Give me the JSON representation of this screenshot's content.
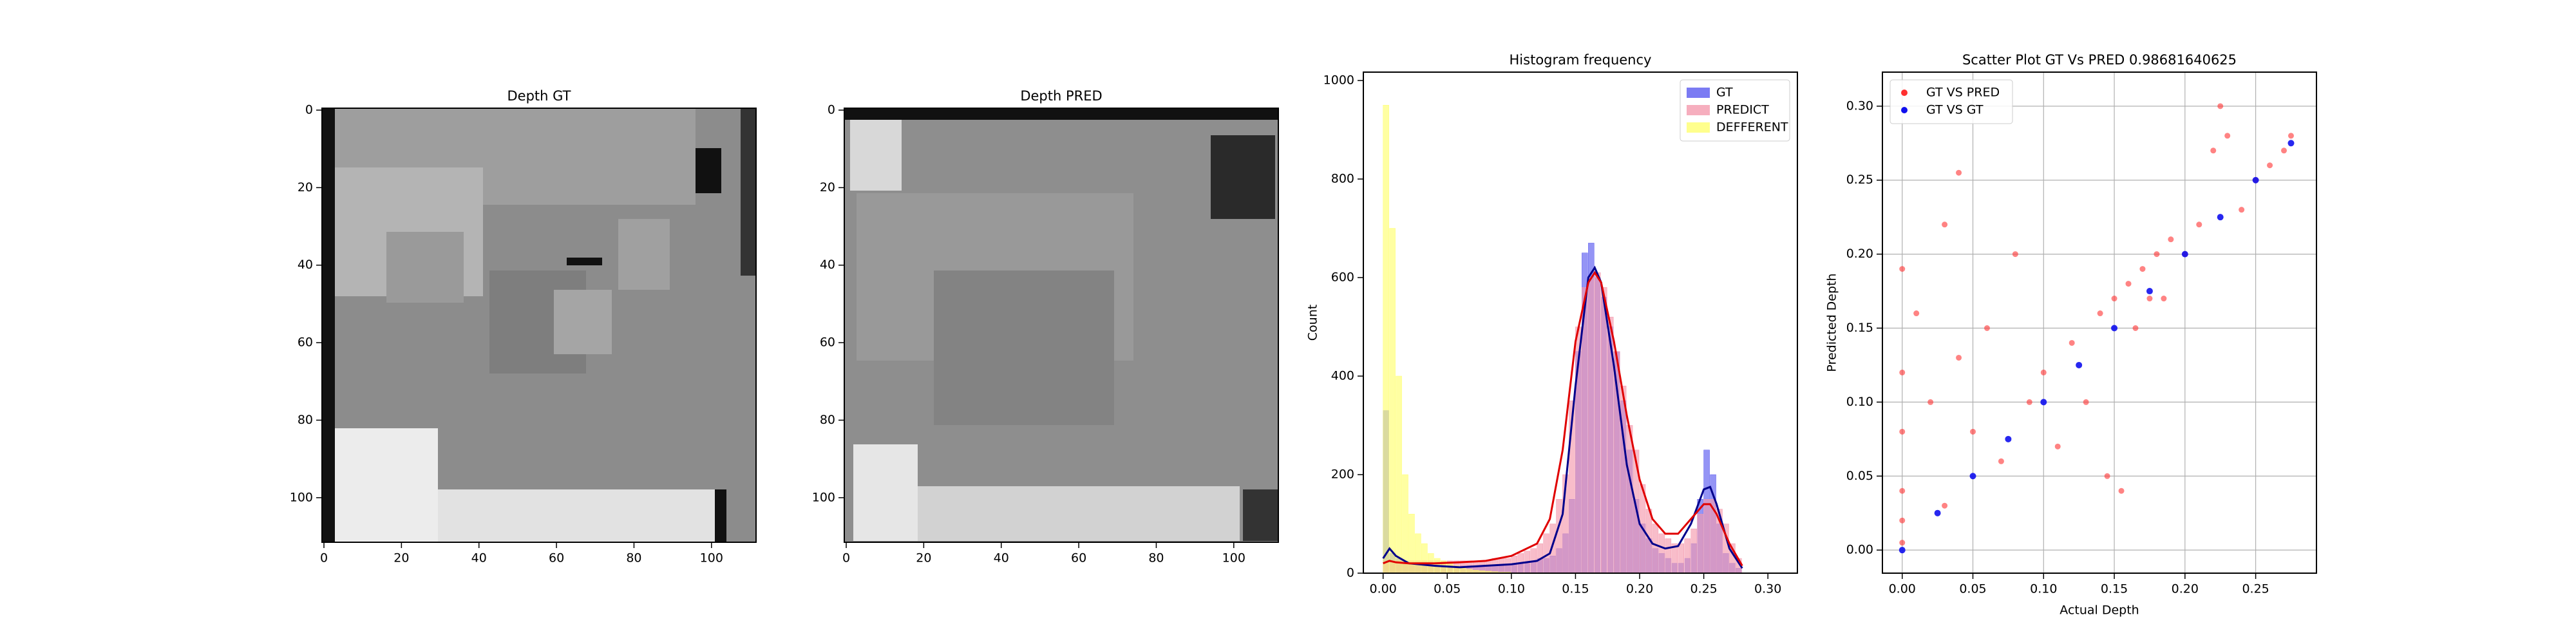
{
  "chart_data": [
    {
      "type": "image",
      "title": "Depth GT",
      "xlim": [
        -0.5,
        111.5
      ],
      "ylim": [
        111.5,
        -0.5
      ],
      "xticks": [
        0,
        20,
        40,
        60,
        80,
        100
      ],
      "yticks": [
        0,
        20,
        40,
        60,
        80,
        100
      ]
    },
    {
      "type": "image",
      "title": "Depth PRED",
      "xlim": [
        -0.5,
        111.5
      ],
      "ylim": [
        111.5,
        -0.5
      ],
      "xticks": [
        0,
        20,
        40,
        60,
        80,
        100
      ],
      "yticks": [
        0,
        20,
        40,
        60,
        80,
        100
      ]
    },
    {
      "type": "histogram",
      "title": "Histogram frequency",
      "ylabel": "Count",
      "legend": "upper right",
      "xlim": [
        -0.0154,
        0.323
      ],
      "ylim": [
        0,
        1017
      ],
      "xticks": [
        {
          "value": 0,
          "label": "0.00"
        },
        {
          "value": 0.05,
          "label": "0.05"
        },
        {
          "value": 0.1,
          "label": "0.10"
        },
        {
          "value": 0.15,
          "label": "0.15"
        },
        {
          "value": 0.2,
          "label": "0.20"
        },
        {
          "value": 0.25,
          "label": "0.25"
        },
        {
          "value": 0.3,
          "label": "0.30"
        }
      ],
      "yticks": [
        0,
        200,
        400,
        600,
        800,
        1000
      ],
      "bins": [
        0,
        0.005,
        0.01,
        0.015,
        0.02,
        0.025,
        0.03,
        0.035,
        0.04,
        0.045,
        0.05,
        0.055,
        0.06,
        0.065,
        0.07,
        0.075,
        0.08,
        0.085,
        0.09,
        0.095,
        0.1,
        0.105,
        0.11,
        0.115,
        0.12,
        0.125,
        0.13,
        0.135,
        0.14,
        0.145,
        0.15,
        0.155,
        0.16,
        0.165,
        0.17,
        0.175,
        0.18,
        0.185,
        0.19,
        0.195,
        0.2,
        0.205,
        0.21,
        0.215,
        0.22,
        0.225,
        0.23,
        0.235,
        0.24,
        0.245,
        0.25,
        0.255,
        0.26,
        0.265,
        0.27,
        0.275,
        0.28
      ],
      "series": [
        {
          "name": "GT",
          "color": "#5a5af0",
          "values": [
            330,
            40,
            30,
            25,
            20,
            18,
            15,
            15,
            15,
            15,
            15,
            15,
            15,
            15,
            15,
            15,
            15,
            15,
            15,
            15,
            18,
            20,
            20,
            25,
            30,
            30,
            35,
            50,
            80,
            150,
            450,
            650,
            670,
            600,
            560,
            500,
            450,
            350,
            250,
            150,
            100,
            70,
            50,
            40,
            30,
            20,
            20,
            30,
            60,
            150,
            250,
            200,
            100,
            40,
            20,
            10
          ]
        },
        {
          "name": "PREDICT",
          "color": "#f49aae",
          "values": [
            20,
            25,
            25,
            25,
            25,
            25,
            25,
            25,
            25,
            25,
            25,
            25,
            25,
            25,
            25,
            25,
            25,
            30,
            30,
            30,
            35,
            40,
            45,
            50,
            60,
            80,
            100,
            150,
            200,
            350,
            500,
            580,
            600,
            610,
            580,
            520,
            450,
            380,
            300,
            250,
            180,
            130,
            100,
            80,
            70,
            60,
            60,
            70,
            90,
            120,
            150,
            150,
            130,
            100,
            60,
            30
          ]
        },
        {
          "name": "DEFFERENT",
          "color": "#ffff70",
          "values": [
            950,
            700,
            400,
            200,
            120,
            80,
            60,
            40,
            30,
            25,
            20,
            15,
            10,
            8,
            6,
            5,
            4,
            3,
            2,
            2,
            0,
            0,
            0,
            0,
            0,
            0,
            0,
            0,
            0,
            0,
            0,
            0,
            0,
            0,
            0,
            0,
            0,
            0,
            0,
            0,
            0,
            0,
            0,
            0,
            0,
            0,
            0,
            0,
            0,
            0,
            0,
            0,
            0,
            0,
            0,
            0
          ]
        }
      ],
      "lines": [
        {
          "color": "#00008b",
          "x": [
            0,
            0.005,
            0.01,
            0.02,
            0.04,
            0.06,
            0.08,
            0.1,
            0.12,
            0.13,
            0.14,
            0.15,
            0.16,
            0.165,
            0.17,
            0.18,
            0.19,
            0.2,
            0.21,
            0.22,
            0.23,
            0.24,
            0.25,
            0.255,
            0.26,
            0.27,
            0.28
          ],
          "values": [
            30,
            50,
            35,
            20,
            15,
            12,
            15,
            18,
            25,
            40,
            120,
            380,
            600,
            620,
            590,
            420,
            220,
            100,
            60,
            50,
            55,
            100,
            170,
            175,
            140,
            50,
            10
          ]
        },
        {
          "color": "#e00000",
          "x": [
            0,
            0.005,
            0.01,
            0.02,
            0.04,
            0.06,
            0.08,
            0.1,
            0.12,
            0.13,
            0.14,
            0.15,
            0.16,
            0.165,
            0.17,
            0.18,
            0.19,
            0.2,
            0.21,
            0.22,
            0.23,
            0.24,
            0.25,
            0.255,
            0.26,
            0.27,
            0.28
          ],
          "values": [
            20,
            25,
            22,
            20,
            20,
            22,
            25,
            35,
            60,
            110,
            250,
            470,
            590,
            610,
            590,
            470,
            320,
            190,
            110,
            80,
            80,
            110,
            140,
            140,
            120,
            60,
            15
          ]
        }
      ]
    },
    {
      "type": "scatter",
      "title": "Scatter Plot GT Vs PRED 0.98681640625",
      "xlabel": "Actual Depth",
      "ylabel": "Predicted Depth",
      "grid": true,
      "legend": "upper left",
      "xlim": [
        -0.014,
        0.293
      ],
      "ylim": [
        -0.0156,
        0.323
      ],
      "xticks": [
        {
          "value": 0,
          "label": "0.00"
        },
        {
          "value": 0.05,
          "label": "0.05"
        },
        {
          "value": 0.1,
          "label": "0.10"
        },
        {
          "value": 0.15,
          "label": "0.15"
        },
        {
          "value": 0.2,
          "label": "0.20"
        },
        {
          "value": 0.25,
          "label": "0.25"
        }
      ],
      "yticks": [
        {
          "value": 0,
          "label": "0.00"
        },
        {
          "value": 0.05,
          "label": "0.05"
        },
        {
          "value": 0.1,
          "label": "0.10"
        },
        {
          "value": 0.15,
          "label": "0.15"
        },
        {
          "value": 0.2,
          "label": "0.20"
        },
        {
          "value": 0.25,
          "label": "0.25"
        },
        {
          "value": 0.3,
          "label": "0.30"
        }
      ],
      "series": [
        {
          "name": "GT VS PRED",
          "color": "#ff3030",
          "x": [
            0,
            0,
            0,
            0,
            0,
            0,
            0.01,
            0.02,
            0.03,
            0.04,
            0.05,
            0.06,
            0.07,
            0.08,
            0.09,
            0.1,
            0.11,
            0.12,
            0.13,
            0.14,
            0.145,
            0.15,
            0.155,
            0.16,
            0.165,
            0.17,
            0.175,
            0.18,
            0.185,
            0.19,
            0.2,
            0.21,
            0.22,
            0.225,
            0.23,
            0.24,
            0.25,
            0.26,
            0.27,
            0.275,
            0.04,
            0.03
          ],
          "values": [
            0.005,
            0.02,
            0.04,
            0.08,
            0.12,
            0.19,
            0.16,
            0.1,
            0.22,
            0.13,
            0.08,
            0.15,
            0.06,
            0.2,
            0.1,
            0.12,
            0.07,
            0.14,
            0.1,
            0.16,
            0.05,
            0.17,
            0.04,
            0.18,
            0.15,
            0.19,
            0.17,
            0.2,
            0.17,
            0.21,
            0.2,
            0.22,
            0.27,
            0.3,
            0.28,
            0.23,
            0.25,
            0.26,
            0.27,
            0.28,
            0.255,
            0.03
          ]
        },
        {
          "name": "GT VS GT",
          "color": "#1010ee",
          "x": [
            0,
            0.025,
            0.05,
            0.075,
            0.1,
            0.125,
            0.15,
            0.175,
            0.2,
            0.225,
            0.25,
            0.275
          ],
          "values": [
            0,
            0.025,
            0.05,
            0.075,
            0.1,
            0.125,
            0.15,
            0.175,
            0.2,
            0.225,
            0.25,
            0.275
          ]
        }
      ]
    }
  ]
}
